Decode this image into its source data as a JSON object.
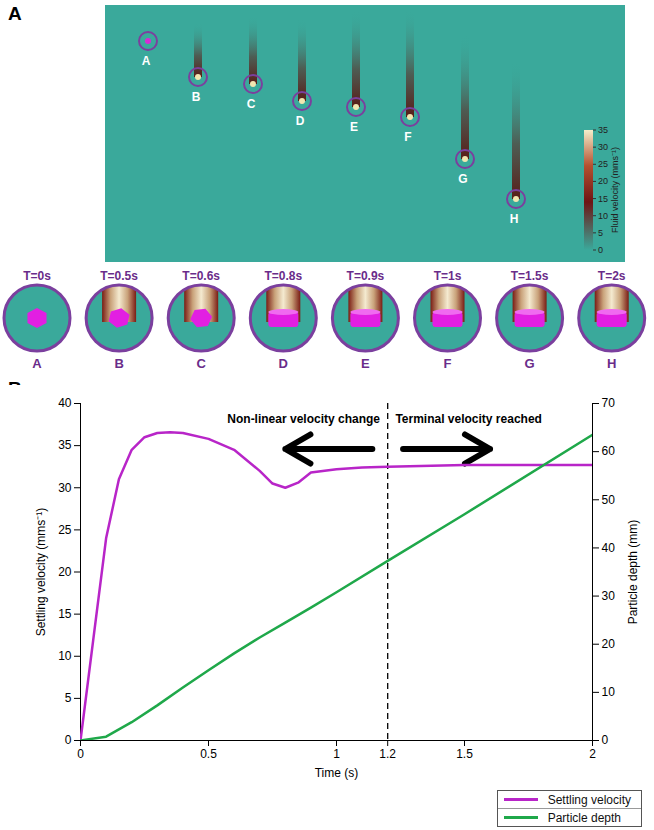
{
  "panel_a": {
    "label": "A",
    "particles": [
      "A",
      "B",
      "C",
      "D",
      "E",
      "F",
      "G",
      "H"
    ],
    "times": [
      "T=0s",
      "T=0.5s",
      "T=0.6s",
      "T=0.8s",
      "T=0.9s",
      "T=1s",
      "T=1.5s",
      "T=2s"
    ],
    "colorbar": {
      "label": "Fluid velocity (mms⁻¹)",
      "range": [
        0,
        35
      ],
      "ticks": [
        0,
        5,
        10,
        15,
        20,
        25,
        30,
        35
      ]
    }
  },
  "chart_data": {
    "type": "line",
    "panel": "B",
    "x_label": "Time (s)",
    "y_label": "Settling velocity (mms⁻¹)",
    "y2_label": "Particle depth (mm)",
    "xlim": [
      0,
      2
    ],
    "xticks": [
      0,
      0.5,
      1,
      1.2,
      1.5,
      2
    ],
    "ylim": [
      0,
      40
    ],
    "yticks": [
      0,
      5,
      10,
      15,
      20,
      25,
      30,
      35,
      40
    ],
    "y2lim": [
      0,
      70
    ],
    "y2ticks": [
      0,
      10,
      20,
      30,
      40,
      50,
      60,
      70
    ],
    "vline": 1.2,
    "annotations": [
      "Non-linear velocity change",
      "Terminal velocity reached"
    ],
    "legend": "bottom-right",
    "series": [
      {
        "name": "Settling velocity",
        "color": "#b825c8",
        "axis": "y",
        "x": [
          0,
          0.05,
          0.1,
          0.15,
          0.2,
          0.25,
          0.3,
          0.35,
          0.4,
          0.5,
          0.6,
          0.7,
          0.75,
          0.8,
          0.85,
          0.9,
          1.0,
          1.1,
          1.2,
          1.5,
          2.0
        ],
        "values": [
          0,
          12,
          24,
          31,
          34.5,
          36,
          36.5,
          36.6,
          36.5,
          35.8,
          34.5,
          32,
          30.5,
          30,
          30.6,
          31.8,
          32.2,
          32.4,
          32.5,
          32.7,
          32.7
        ]
      },
      {
        "name": "Particle depth",
        "color": "#1fa84a",
        "axis": "y2",
        "x": [
          0,
          0.1,
          0.2,
          0.3,
          0.4,
          0.5,
          0.6,
          0.7,
          0.8,
          0.9,
          1.0,
          1.2,
          1.5,
          2.0
        ],
        "values": [
          0,
          0.8,
          3.8,
          7.3,
          11,
          14.6,
          18.1,
          21.4,
          24.5,
          27.6,
          30.8,
          37.3,
          47,
          63.5
        ]
      }
    ]
  }
}
